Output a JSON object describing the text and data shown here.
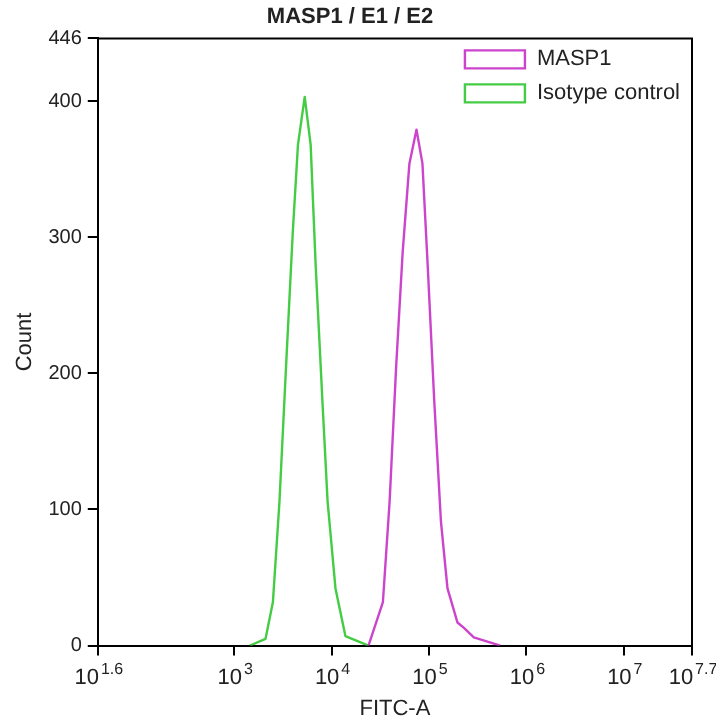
{
  "chart_data": {
    "type": "line",
    "title": "MASP1 / E1 / E2",
    "xlabel": "FITC-A",
    "ylabel": "Count",
    "log": "x",
    "xlim": [
      39.81,
      50118723
    ],
    "xticks": [
      {
        "value": 39.81,
        "label": "10$^{1.6}$"
      },
      {
        "value": 1000,
        "label": "10$^{3}$"
      },
      {
        "value": 10000,
        "label": "10$^{4}$"
      },
      {
        "value": 100000,
        "label": "10$^{5}$"
      },
      {
        "value": 1000000,
        "label": "10$^{6}$"
      },
      {
        "value": 10000000,
        "label": "10$^{7}$"
      },
      {
        "value": 50118723,
        "label": "10$^{7.7}$"
      }
    ],
    "ylim": [
      0,
      446
    ],
    "yticks": [
      0,
      100,
      200,
      300,
      400,
      446
    ],
    "grid": false,
    "legend": "top right",
    "marker": "none",
    "line_style": "solid",
    "series": [
      {
        "name": "MASP1",
        "color": "#cc44cc",
        "x": [
          23930,
          33650,
          39450,
          46030,
          53700,
          62950,
          74470,
          85700,
          97050,
          113200,
          132700,
          154900,
          195900,
          228600,
          288400,
          539500
        ],
        "values": [
          0,
          32,
          106,
          205,
          289,
          354,
          379,
          354,
          279,
          180,
          91,
          42,
          17,
          13,
          6,
          0
        ]
      },
      {
        "name": "Isotype control",
        "color": "#44cc44",
        "x": [
          1450,
          2100,
          2500,
          2920,
          3410,
          4000,
          4520,
          5300,
          6100,
          6870,
          8050,
          9100,
          10970,
          13870,
          23930
        ],
        "values": [
          0,
          5,
          32,
          106,
          205,
          304,
          368,
          403,
          368,
          279,
          180,
          106,
          42,
          7,
          0
        ]
      }
    ]
  }
}
